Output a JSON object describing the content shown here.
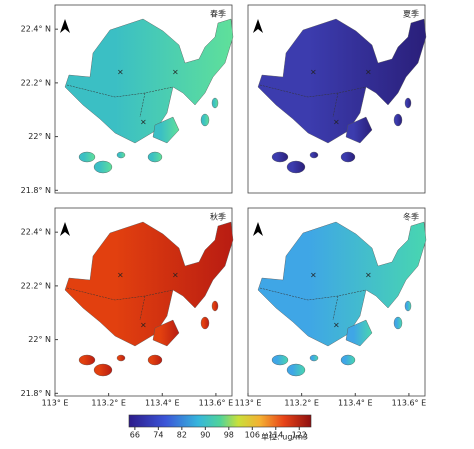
{
  "panels": [
    {
      "title": "春季",
      "color": "#3bbfc4",
      "accent": "#5fe09a"
    },
    {
      "title": "夏季",
      "color": "#3c3cae",
      "accent": "#2a1f7a"
    },
    {
      "title": "秋季",
      "color": "#e2400f",
      "accent": "#b81c12"
    },
    {
      "title": "冬季",
      "color": "#3fa6e6",
      "accent": "#48d6b0"
    }
  ],
  "lat_ticks": [
    {
      "value": 22.4,
      "label": "22.4° N"
    },
    {
      "value": 22.2,
      "label": "22.2° N"
    },
    {
      "value": 22,
      "label": "22° N"
    },
    {
      "value": 21.8,
      "label": "21.8° N"
    }
  ],
  "lon_ticks": [
    {
      "value": 113,
      "label": "113° E"
    },
    {
      "value": 113.2,
      "label": "113.2° E"
    },
    {
      "value": 113.4,
      "label": "113.4° E"
    },
    {
      "value": 113.6,
      "label": "113.6° E"
    }
  ],
  "latlim": [
    21.79,
    22.49
  ],
  "lonlim": [
    113,
    113.66
  ],
  "colorbar": {
    "lim": [
      64,
      126
    ],
    "ticks": [
      66,
      74,
      82,
      90,
      98,
      106,
      114,
      122
    ],
    "unit": "单位: ug/m3"
  }
}
